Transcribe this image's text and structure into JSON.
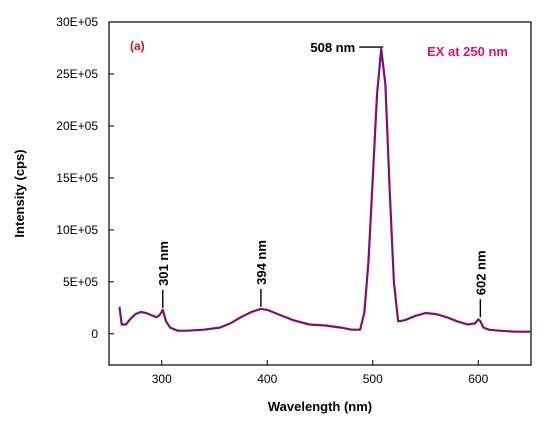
{
  "chart_data": {
    "type": "line",
    "panel_label": "(a)",
    "excitation_label": "EX at 250 nm",
    "xlabel": "Wavelength (nm)",
    "ylabel": "Intensity (cps)",
    "xlim": [
      250,
      650
    ],
    "ylim": [
      -3,
      30
    ],
    "x_ticks": [
      300,
      400,
      500,
      600
    ],
    "x_tick_labels": [
      "300",
      "400",
      "500",
      "600"
    ],
    "y_ticks": [
      0,
      5,
      10,
      15,
      20,
      25,
      30
    ],
    "y_tick_labels": [
      "0",
      "5E+05",
      "10E+05",
      "15E+05",
      "20E+05",
      "25E+05",
      "30E+05"
    ],
    "grid": false,
    "legend": "none",
    "series": [
      {
        "color": "#7b0f7b",
        "x": [
          260,
          262,
          266,
          270,
          275,
          280,
          285,
          290,
          295,
          298,
          301,
          304,
          308,
          315,
          325,
          340,
          355,
          365,
          375,
          385,
          394,
          400,
          410,
          425,
          440,
          455,
          470,
          480,
          488,
          492,
          496,
          500,
          504,
          508,
          512,
          516,
          520,
          524,
          530,
          540,
          550,
          560,
          570,
          580,
          590,
          597,
          600,
          602,
          605,
          610,
          620,
          635,
          650
        ],
        "values": [
          2.6,
          0.9,
          0.9,
          1.4,
          1.9,
          2.1,
          2.0,
          1.8,
          1.6,
          1.8,
          2.3,
          1.2,
          0.6,
          0.3,
          0.3,
          0.4,
          0.6,
          1.0,
          1.6,
          2.1,
          2.4,
          2.3,
          1.9,
          1.3,
          0.9,
          0.8,
          0.6,
          0.4,
          0.4,
          2.0,
          7.0,
          15.0,
          23.0,
          27.4,
          24.0,
          14.0,
          5.0,
          1.2,
          1.3,
          1.7,
          2.0,
          1.9,
          1.6,
          1.2,
          0.9,
          1.0,
          1.4,
          1.2,
          0.6,
          0.4,
          0.3,
          0.2,
          0.2
        ]
      }
    ],
    "annotations": [
      {
        "label": "301 nm",
        "x": 301,
        "y": 2.3
      },
      {
        "label": "394 nm",
        "x": 394,
        "y": 2.4
      },
      {
        "label": "508 nm",
        "x": 508,
        "y": 27.4
      },
      {
        "label": "602 nm",
        "x": 602,
        "y": 1.4
      }
    ],
    "colors": {
      "line": "#7b0f7b",
      "panel_label": "#e01010",
      "excitation_label": "#e0107a"
    }
  }
}
